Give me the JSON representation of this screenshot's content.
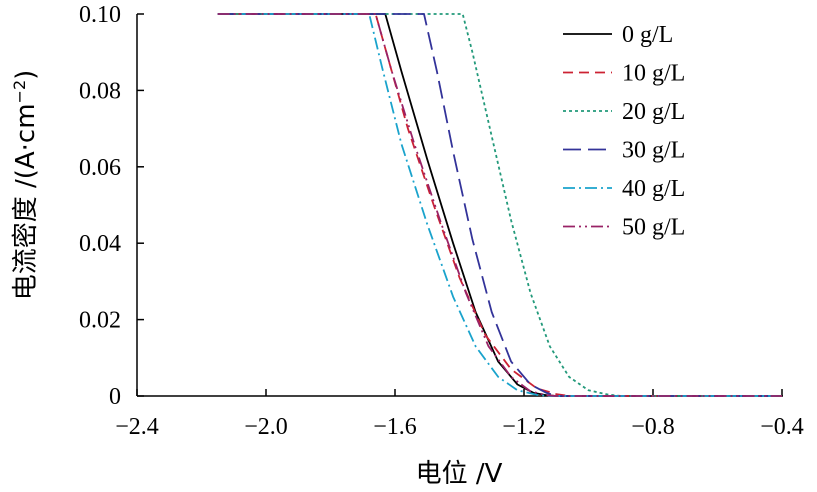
{
  "chart_data": {
    "type": "line",
    "title": "",
    "xlabel": "电位 /V",
    "ylabel_main": "电流密度 /(A·cm",
    "ylabel_sup": "−2",
    "ylabel_close": ")",
    "xlim": [
      -2.4,
      -0.4
    ],
    "ylim": [
      0,
      0.1
    ],
    "x_ticks": [
      -2.4,
      -2.0,
      -1.6,
      -1.2,
      -0.8,
      -0.4
    ],
    "x_tick_labels": [
      "−2.4",
      "−2.0",
      "−1.6",
      "−1.2",
      "−0.8",
      "−0.4"
    ],
    "y_ticks": [
      0,
      0.02,
      0.04,
      0.06,
      0.08,
      0.1
    ],
    "y_tick_labels": [
      "0",
      "0.02",
      "0.04",
      "0.06",
      "0.08",
      "0.10"
    ],
    "grid": false,
    "legend_position": "top-right",
    "series": [
      {
        "name": "0 g/L",
        "color": "#000000",
        "dash": "",
        "x": [
          -2.15,
          -1.63,
          -1.58,
          -1.5,
          -1.42,
          -1.35,
          -1.28,
          -1.22,
          -1.17,
          -1.13,
          -1.1,
          -0.4
        ],
        "y": [
          0.1,
          0.1,
          0.085,
          0.062,
          0.04,
          0.022,
          0.009,
          0.003,
          0.0008,
          0.0002,
          0,
          0
        ]
      },
      {
        "name": "10 g/L",
        "color": "#cc2233",
        "dash": "10,6",
        "x": [
          -2.15,
          -1.66,
          -1.62,
          -1.56,
          -1.48,
          -1.4,
          -1.32,
          -1.24,
          -1.16,
          -1.1,
          -1.06,
          -0.4
        ],
        "y": [
          0.1,
          0.1,
          0.088,
          0.07,
          0.05,
          0.031,
          0.016,
          0.007,
          0.002,
          0.0005,
          0,
          0
        ]
      },
      {
        "name": "20 g/L",
        "color": "#22997a",
        "dash": "3,3",
        "x": [
          -2.15,
          -1.39,
          -1.36,
          -1.3,
          -1.24,
          -1.18,
          -1.12,
          -1.06,
          -1.0,
          -0.94,
          -0.9,
          -0.4
        ],
        "y": [
          0.1,
          0.1,
          0.09,
          0.068,
          0.046,
          0.027,
          0.013,
          0.005,
          0.0015,
          0.0004,
          0,
          0
        ]
      },
      {
        "name": "30 g/L",
        "color": "#333399",
        "dash": "18,7",
        "x": [
          -2.15,
          -1.51,
          -1.47,
          -1.42,
          -1.36,
          -1.3,
          -1.24,
          -1.18,
          -1.13,
          -1.1,
          -0.4
        ],
        "y": [
          0.1,
          0.1,
          0.085,
          0.064,
          0.041,
          0.022,
          0.009,
          0.003,
          0.0008,
          0,
          0
        ]
      },
      {
        "name": "40 g/L",
        "color": "#1aa3cc",
        "dash": "12,4,2,4",
        "x": [
          -2.15,
          -1.68,
          -1.64,
          -1.58,
          -1.5,
          -1.42,
          -1.35,
          -1.28,
          -1.22,
          -1.16,
          -1.12,
          -0.4
        ],
        "y": [
          0.1,
          0.1,
          0.086,
          0.066,
          0.045,
          0.026,
          0.013,
          0.005,
          0.0015,
          0.0003,
          0,
          0
        ]
      },
      {
        "name": "50 g/L",
        "color": "#992266",
        "dash": "12,4,2,4,2,4",
        "x": [
          -2.15,
          -1.66,
          -1.61,
          -1.54,
          -1.46,
          -1.38,
          -1.31,
          -1.24,
          -1.18,
          -1.13,
          -1.1,
          -0.4
        ],
        "y": [
          0.1,
          0.1,
          0.085,
          0.066,
          0.046,
          0.027,
          0.013,
          0.005,
          0.0012,
          0.0002,
          0,
          0
        ]
      }
    ]
  }
}
